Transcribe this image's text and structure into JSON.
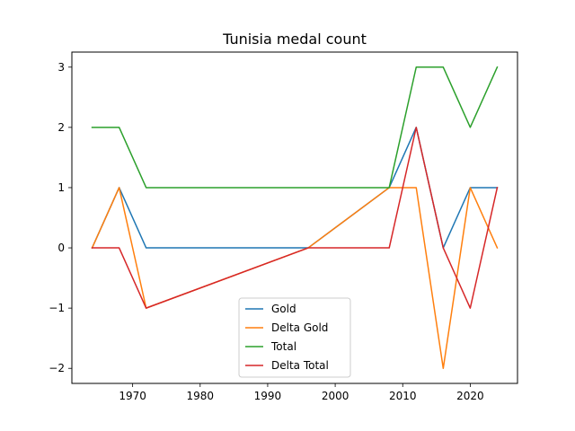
{
  "chart_data": {
    "type": "line",
    "title": "Tunisia medal count",
    "xlabel": "",
    "ylabel": "",
    "xlim": [
      1961,
      2027
    ],
    "ylim": [
      -2.25,
      3.25
    ],
    "xticks": [
      1970,
      1980,
      1990,
      2000,
      2010,
      2020
    ],
    "yticks": [
      -2,
      -1,
      0,
      1,
      2,
      3
    ],
    "ytick_labels": [
      "−2",
      "−1",
      "0",
      "1",
      "2",
      "3"
    ],
    "grid": false,
    "legend_position": "lower-center",
    "x": [
      1964,
      1968,
      1972,
      1996,
      2008,
      2012,
      2016,
      2020,
      2024
    ],
    "series": [
      {
        "name": "Gold",
        "color": "#1f77b4",
        "values": [
          0,
          1,
          0,
          0,
          1,
          2,
          0,
          1,
          1
        ]
      },
      {
        "name": "Delta Gold",
        "color": "#ff7f0e",
        "values": [
          0,
          1,
          -1,
          0,
          1,
          1,
          -2,
          1,
          0
        ]
      },
      {
        "name": "Total",
        "color": "#2ca02c",
        "values": [
          2,
          2,
          1,
          1,
          1,
          3,
          3,
          2,
          3
        ]
      },
      {
        "name": "Delta Total",
        "color": "#d62728",
        "values": [
          0,
          0,
          -1,
          0,
          0,
          2,
          0,
          -1,
          1
        ]
      }
    ]
  }
}
